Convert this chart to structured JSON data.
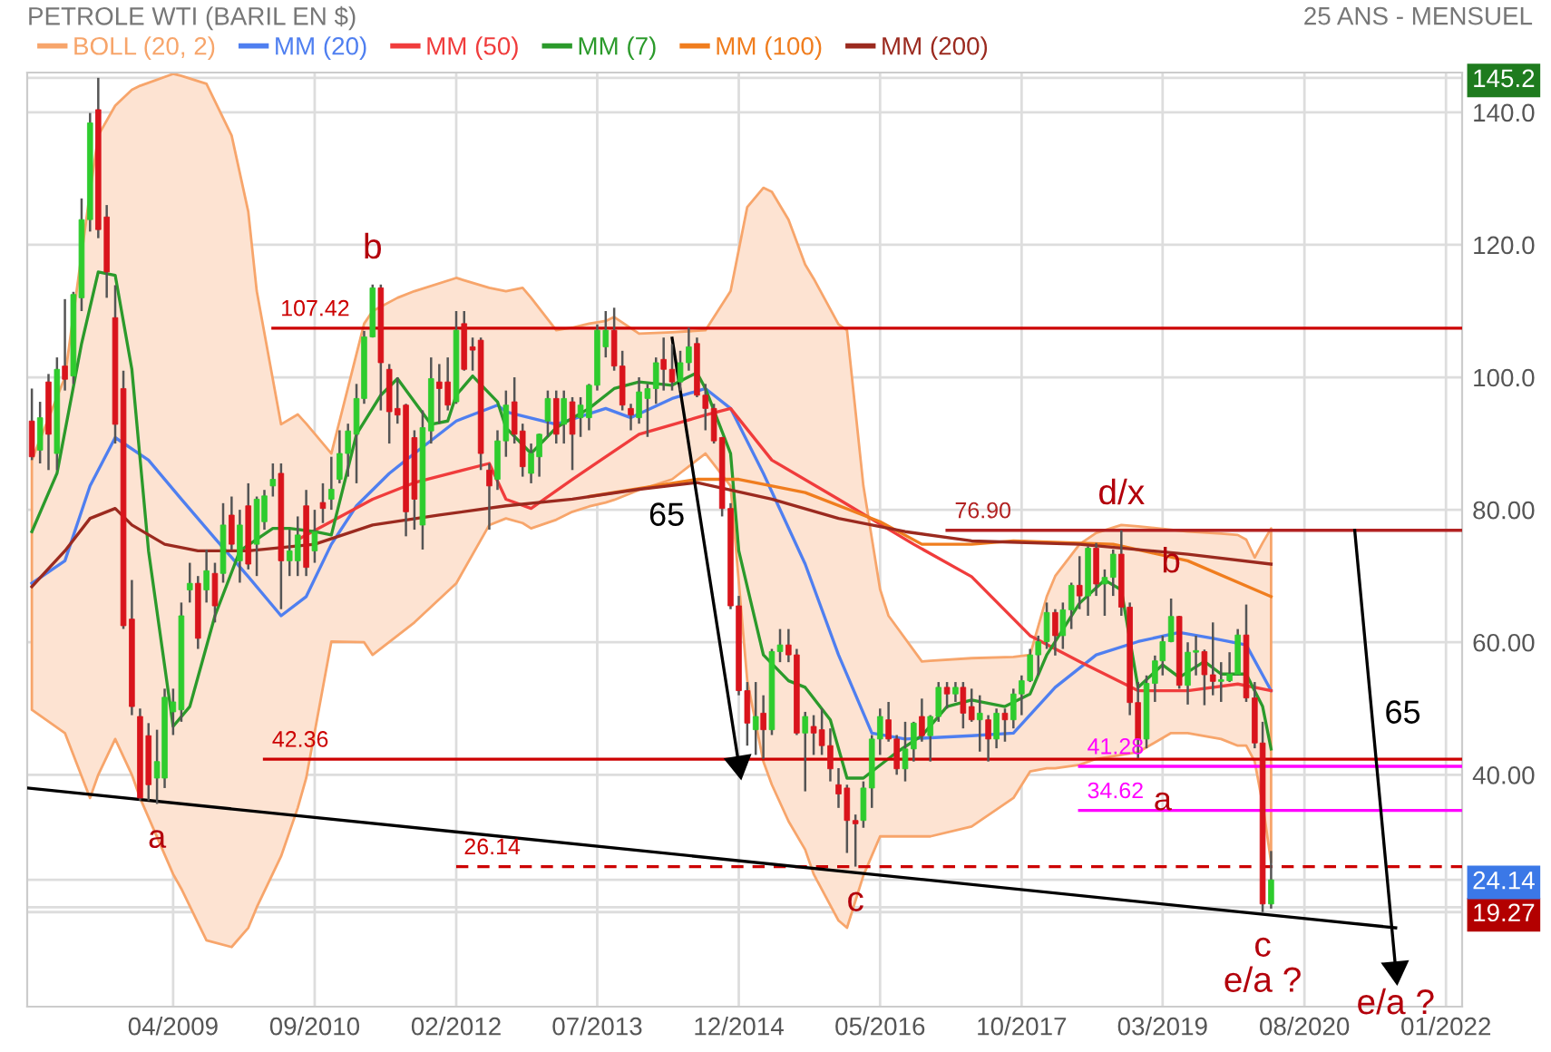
{
  "chart_data": {
    "type": "candlestick",
    "title": "PETROLE WTI (BARIL EN $)",
    "subtitle": "25 ANS - MENSUEL",
    "x": [
      "2007-11",
      "2007-12",
      "2008-01",
      "2008-02",
      "2008-03",
      "2008-04",
      "2008-05",
      "2008-06",
      "2008-07",
      "2008-08",
      "2008-09",
      "2008-10",
      "2008-11",
      "2008-12",
      "2009-01",
      "2009-02",
      "2009-03",
      "2009-04",
      "2009-05",
      "2009-06",
      "2009-07",
      "2009-08",
      "2009-09",
      "2009-10",
      "2009-11",
      "2009-12",
      "2010-01",
      "2010-02",
      "2010-03",
      "2010-04",
      "2010-05",
      "2010-06",
      "2010-07",
      "2010-08",
      "2010-09",
      "2010-10",
      "2010-11",
      "2010-12",
      "2011-01",
      "2011-02",
      "2011-03",
      "2011-04",
      "2011-05",
      "2011-06",
      "2011-07",
      "2011-08",
      "2011-09",
      "2011-10",
      "2011-11",
      "2011-12",
      "2012-01",
      "2012-02",
      "2012-03",
      "2012-04",
      "2012-05",
      "2012-06",
      "2012-07",
      "2012-08",
      "2012-09",
      "2012-10",
      "2012-11",
      "2012-12",
      "2013-01",
      "2013-02",
      "2013-03",
      "2013-04",
      "2013-05",
      "2013-06",
      "2013-07",
      "2013-08",
      "2013-09",
      "2013-10",
      "2013-11",
      "2013-12",
      "2014-01",
      "2014-02",
      "2014-03",
      "2014-04",
      "2014-05",
      "2014-06",
      "2014-07",
      "2014-08",
      "2014-09",
      "2014-10",
      "2014-11",
      "2014-12",
      "2015-01",
      "2015-02",
      "2015-03",
      "2015-04",
      "2015-05",
      "2015-06",
      "2015-07",
      "2015-08",
      "2015-09",
      "2015-10",
      "2015-11",
      "2015-12",
      "2016-01",
      "2016-02",
      "2016-03",
      "2016-04",
      "2016-05",
      "2016-06",
      "2016-07",
      "2016-08",
      "2016-09",
      "2016-10",
      "2016-11",
      "2016-12",
      "2017-01",
      "2017-02",
      "2017-03",
      "2017-04",
      "2017-05",
      "2017-06",
      "2017-07",
      "2017-08",
      "2017-09",
      "2017-10",
      "2017-11",
      "2017-12",
      "2018-01",
      "2018-02",
      "2018-03",
      "2018-04",
      "2018-05",
      "2018-06",
      "2018-07",
      "2018-08",
      "2018-09",
      "2018-10",
      "2018-11",
      "2018-12",
      "2019-01",
      "2019-02",
      "2019-03",
      "2019-04",
      "2019-05",
      "2019-06",
      "2019-07",
      "2019-08",
      "2019-09",
      "2019-10",
      "2019-11",
      "2019-12",
      "2020-01",
      "2020-02",
      "2020-03",
      "2020-04"
    ],
    "ohlc": [
      [
        93.4,
        98.3,
        87.5,
        88
      ],
      [
        89,
        96.3,
        87,
        93.9
      ],
      [
        99.3,
        100.5,
        86,
        91.4
      ],
      [
        88.5,
        103,
        86,
        101.2
      ],
      [
        101.7,
        111.8,
        98,
        99.7
      ],
      [
        100.2,
        112.9,
        99,
        112.5
      ],
      [
        112,
        127,
        110,
        123.8
      ],
      [
        123.8,
        139.9,
        122,
        138.4
      ],
      [
        140.4,
        145.2,
        121,
        122.3
      ],
      [
        124.2,
        126,
        112,
        115.9
      ],
      [
        109,
        113.9,
        90,
        92.9
      ],
      [
        98.3,
        101,
        62,
        62.5
      ],
      [
        63.5,
        69.4,
        49,
        50.3
      ],
      [
        48.8,
        50,
        36.1,
        36.5
      ],
      [
        45.9,
        47.8,
        36.1,
        38.5
      ],
      [
        39.5,
        46.8,
        35.6,
        42
      ],
      [
        39.5,
        53,
        38,
        51.7
      ],
      [
        49.5,
        53,
        46,
        51
      ],
      [
        49.8,
        66,
        48,
        64
      ],
      [
        67.9,
        72,
        66,
        68.9
      ],
      [
        68.9,
        70,
        59,
        60.6
      ],
      [
        67.9,
        74,
        66,
        70.8
      ],
      [
        70.4,
        72,
        63,
        65.5
      ],
      [
        70.4,
        81,
        69,
        77.7
      ],
      [
        79.2,
        82,
        74,
        74.8
      ],
      [
        72.3,
        80,
        69,
        77.7
      ],
      [
        80.6,
        84,
        71,
        71.8
      ],
      [
        74.8,
        82,
        70,
        81.6
      ],
      [
        78.2,
        83,
        77,
        82.1
      ],
      [
        83.6,
        87,
        82,
        84.6
      ],
      [
        85.5,
        87,
        65,
        72.3
      ],
      [
        72.3,
        77,
        70,
        73.8
      ],
      [
        72.3,
        79,
        70,
        76.2
      ],
      [
        80.6,
        83,
        70,
        71.3
      ],
      [
        73.8,
        80,
        72,
        76.7
      ],
      [
        81.1,
        84,
        78,
        80.2
      ],
      [
        81.6,
        88,
        80,
        83.1
      ],
      [
        84.6,
        92,
        84,
        88.5
      ],
      [
        88.5,
        93,
        85,
        91.9
      ],
      [
        91.4,
        99,
        84,
        96.8
      ],
      [
        96.8,
        107,
        96,
        106.1
      ],
      [
        106.1,
        114,
        106,
        113.5
      ],
      [
        113.5,
        114,
        95,
        102.2
      ],
      [
        101.2,
        102,
        90,
        94.8
      ],
      [
        95.3,
        100,
        93,
        94.3
      ],
      [
        95.8,
        96,
        76,
        79.7
      ],
      [
        90.9,
        92,
        77,
        81.6
      ],
      [
        77.7,
        95,
        74,
        92.4
      ],
      [
        91.9,
        103,
        90,
        99.8
      ],
      [
        99.3,
        102,
        93,
        98.3
      ],
      [
        99.3,
        103,
        95,
        95.8
      ],
      [
        96.3,
        110,
        96,
        107.1
      ],
      [
        108.1,
        110,
        101,
        101.2
      ],
      [
        104.6,
        106,
        101,
        104.1
      ],
      [
        105.6,
        106,
        86,
        88.5
      ],
      [
        86,
        87,
        77,
        83.6
      ],
      [
        84.6,
        92,
        83,
        90.4
      ],
      [
        90.4,
        98,
        88,
        95.8
      ],
      [
        96.3,
        100,
        90,
        91.4
      ],
      [
        91.9,
        93,
        85,
        86.5
      ],
      [
        85.5,
        90,
        84,
        88.5
      ],
      [
        88,
        91.5,
        85,
        91.4
      ],
      [
        93.4,
        98,
        91,
        96.8
      ],
      [
        96.8,
        98,
        90,
        91.4
      ],
      [
        92.9,
        98,
        90,
        96.8
      ],
      [
        96.3,
        97,
        86,
        91.4
      ],
      [
        93.9,
        97,
        91,
        95.8
      ],
      [
        93.9,
        99,
        92,
        98.8
      ],
      [
        98.8,
        108,
        98,
        107.1
      ],
      [
        104.6,
        110,
        103,
        107.1
      ],
      [
        107.1,
        110.5,
        101,
        101.7
      ],
      [
        101.7,
        104,
        95,
        95.8
      ],
      [
        95.3,
        96,
        92,
        94.3
      ],
      [
        93.9,
        100,
        93,
        97.8
      ],
      [
        96.8,
        99,
        91,
        98.3
      ],
      [
        98.3,
        103,
        96,
        102.2
      ],
      [
        102.7,
        106,
        98,
        101.2
      ],
      [
        101.2,
        105,
        98,
        99.3
      ],
      [
        99.3,
        104,
        98,
        102.2
      ],
      [
        102.2,
        107.5,
        101,
        104.6
      ],
      [
        105.1,
        106,
        97,
        97.3
      ],
      [
        97.3,
        99,
        92,
        95.3
      ],
      [
        95.3,
        96,
        90,
        90.4
      ],
      [
        90.9,
        91,
        79,
        80.2
      ],
      [
        80.2,
        81,
        65,
        65.5
      ],
      [
        65.5,
        67,
        52,
        52.7
      ],
      [
        52.7,
        54,
        44.4,
        47.8
      ],
      [
        46.8,
        54,
        43,
        48.8
      ],
      [
        49.3,
        52,
        42.4,
        46.8
      ],
      [
        46.8,
        59,
        46,
        58.6
      ],
      [
        58.6,
        62,
        57,
        59.6
      ],
      [
        59.6,
        62,
        57,
        58.1
      ],
      [
        58.1,
        59,
        46,
        46.3
      ],
      [
        46.3,
        49.5,
        37.5,
        48.8
      ],
      [
        47.3,
        49,
        43,
        46.3
      ],
      [
        46.8,
        50,
        43,
        44.4
      ],
      [
        44.4,
        47,
        39,
        40.9
      ],
      [
        38.5,
        41,
        35,
        37.1
      ],
      [
        38,
        38.5,
        28.2,
        33.1
      ],
      [
        33.1,
        34,
        26.14,
        32.6
      ],
      [
        33.1,
        39,
        32,
        38
      ],
      [
        38,
        46,
        35,
        45.4
      ],
      [
        45.4,
        50,
        43,
        48.8
      ],
      [
        48.3,
        51,
        45,
        45.4
      ],
      [
        45.4,
        46,
        40,
        40.9
      ],
      [
        40.9,
        48,
        39,
        43.9
      ],
      [
        43.9,
        48,
        42,
        47.8
      ],
      [
        48.8,
        51.5,
        45,
        45.9
      ],
      [
        45.9,
        49,
        42,
        48.8
      ],
      [
        48.8,
        54,
        48,
        53.2
      ],
      [
        53.2,
        54,
        50,
        52.2
      ],
      [
        52.2,
        54,
        51,
        53.2
      ],
      [
        53.2,
        54,
        47,
        49.3
      ],
      [
        50.3,
        53,
        48,
        48.3
      ],
      [
        48.3,
        52,
        43.5,
        49.3
      ],
      [
        48.3,
        49,
        42,
        45.4
      ],
      [
        45.4,
        50,
        44,
        49.3
      ],
      [
        49.3,
        50,
        45,
        48.3
      ],
      [
        48.3,
        53,
        47,
        52.2
      ],
      [
        52.2,
        55,
        49,
        54.2
      ],
      [
        54.2,
        59,
        54,
        58.1
      ],
      [
        58.1,
        61,
        55,
        60.1
      ],
      [
        60.1,
        66,
        59,
        64.5
      ],
      [
        64.5,
        65,
        58,
        61
      ],
      [
        61,
        66,
        59,
        64.9
      ],
      [
        64.9,
        69,
        62,
        68.6
      ],
      [
        68.6,
        73,
        65,
        67
      ],
      [
        67,
        74.5,
        64,
        74.2
      ],
      [
        74.2,
        75,
        67,
        68.8
      ],
      [
        68.8,
        71,
        64,
        69.8
      ],
      [
        69.8,
        74,
        67,
        73.3
      ],
      [
        73.3,
        76.9,
        64,
        65.3
      ],
      [
        65.3,
        66,
        49,
        50.9
      ],
      [
        50.9,
        54,
        42.5,
        45.4
      ],
      [
        45.4,
        55,
        44,
        53.8
      ],
      [
        53.8,
        58,
        51,
        57.2
      ],
      [
        57.2,
        61,
        55,
        60.1
      ],
      [
        60.1,
        66.6,
        60,
        63.9
      ],
      [
        63.9,
        64,
        53,
        53.5
      ],
      [
        53.5,
        60,
        50.6,
        58.5
      ],
      [
        58.5,
        61,
        55,
        58.6
      ],
      [
        58.6,
        58.9,
        50.5,
        55.1
      ],
      [
        55.1,
        63,
        52,
        54.1
      ],
      [
        54.1,
        57,
        51,
        54.2
      ],
      [
        54.2,
        58.5,
        54,
        55.2
      ],
      [
        55.2,
        62,
        55,
        61.1
      ],
      [
        61.1,
        65.7,
        51,
        51.6
      ],
      [
        51.6,
        54,
        44,
        44.8
      ],
      [
        44.8,
        48,
        19.27,
        20.5
      ],
      [
        20.5,
        28.5,
        19.8,
        24.14
      ]
    ],
    "series": [
      {
        "name": "BOLL (20, 2)",
        "type": "area",
        "color": "#f7a56b",
        "values": [
          null,
          null,
          null,
          null,
          null,
          null,
          null,
          null,
          null,
          null,
          null,
          null,
          null,
          null,
          null,
          null,
          null,
          null,
          null,
          null,
          null,
          null,
          null,
          null,
          null,
          null,
          null,
          null,
          null,
          null,
          null,
          null,
          null,
          null,
          null,
          null,
          null,
          null,
          null,
          null,
          null,
          null,
          null,
          null,
          null,
          null,
          null,
          null,
          null,
          null,
          null,
          null,
          null,
          null,
          null,
          null,
          null,
          null,
          null,
          null,
          null,
          null,
          null,
          null,
          null
        ],
        "x": [
          "2007-11",
          "2008-03",
          "2008-06",
          "2008-07",
          "2008-09",
          "2008-11",
          "2008-12",
          "2009-04",
          "2009-05",
          "2009-08",
          "2009-11",
          "2010-01",
          "2010-02",
          "2010-05",
          "2010-07",
          "2010-08",
          "2010-11",
          "2011-03",
          "2011-04",
          "2011-07",
          "2011-09",
          "2012-02",
          "2012-06",
          "2012-08",
          "2012-10",
          "2012-11",
          "2013-02",
          "2013-04",
          "2013-06",
          "2013-08",
          "2013-09",
          "2013-12",
          "2014-04",
          "2014-08",
          "2014-11",
          "2015-01",
          "2015-03",
          "2015-04",
          "2015-06",
          "2015-08",
          "2015-09",
          "2015-12",
          "2016-01",
          "2016-03",
          "2016-05",
          "2016-06",
          "2016-10",
          "2016-11",
          "2017-04",
          "2017-09",
          "2017-11",
          "2018-01",
          "2018-02",
          "2018-05",
          "2018-07",
          "2018-10",
          "2018-12",
          "2019-04",
          "2019-06",
          "2019-10",
          "2019-12",
          "2020-01",
          "2020-02",
          "2020-03",
          "2020-04"
        ],
        "upper": [
          87.5,
          100,
          128,
          136.5,
          141,
          143.4,
          144,
          145.8,
          145.5,
          144.3,
          136.5,
          125,
          113,
          92.9,
          94.4,
          93,
          88.5,
          108.1,
          110,
          112,
          113,
          115,
          113.5,
          113,
          113.5,
          112,
          107.1,
          107.5,
          108.1,
          108.5,
          109.1,
          106.6,
          106.8,
          107.1,
          113,
          125.7,
          128.6,
          128,
          123.8,
          117,
          114.9,
          108,
          107.1,
          83.6,
          68,
          64,
          57.1,
          57.2,
          57.6,
          57.8,
          58.1,
          66.9,
          70,
          74.8,
          76.5,
          77.7,
          77.5,
          77,
          76.7,
          76.4,
          76.2,
          75.5,
          72.8,
          75,
          77.2
        ],
        "lower": [
          49.8,
          46.3,
          36.5,
          40,
          45.4,
          40,
          36.5,
          25,
          22.8,
          15,
          14,
          16.9,
          20,
          27.7,
          35,
          39.5,
          60.1,
          60,
          58.1,
          61,
          63,
          68.9,
          77.7,
          78.7,
          78,
          77.2,
          78.5,
          79.7,
          80.5,
          81.1,
          81.5,
          83,
          84.6,
          88.5,
          83.6,
          54.2,
          42,
          38.5,
          33,
          28.7,
          25,
          18,
          16.9,
          24.8,
          30.7,
          30.7,
          30.7,
          30.7,
          32.2,
          36.5,
          40.5,
          41,
          41,
          41.5,
          42.4,
          43,
          43.4,
          46.3,
          46.3,
          45.4,
          44.4,
          44.4,
          42,
          35.6,
          26.8
        ]
      },
      {
        "name": "MM (20)",
        "type": "line",
        "color": "#4f7ff0",
        "x": [
          "2007-11",
          "2008-03",
          "2008-06",
          "2008-09",
          "2009-01",
          "2009-05",
          "2009-09",
          "2010-01",
          "2010-05",
          "2010-08",
          "2010-11",
          "2011-02",
          "2011-06",
          "2011-09",
          "2012-02",
          "2012-07",
          "2012-08",
          "2013-02",
          "2013-08",
          "2013-11",
          "2014-04",
          "2014-08",
          "2014-11",
          "2015-03",
          "2015-08",
          "2015-12",
          "2016-04",
          "2016-08",
          "2017-04",
          "2017-09",
          "2018-02",
          "2018-07",
          "2018-12",
          "2019-05",
          "2019-09",
          "2020-01",
          "2020-04"
        ],
        "values": [
          68.9,
          72.3,
          83.6,
          90.9,
          87.5,
          81.6,
          75.7,
          69.9,
          64,
          66.9,
          74.8,
          80.6,
          85.5,
          88.5,
          93.4,
          95.8,
          94.8,
          92.9,
          95.3,
          93.9,
          96.8,
          98.3,
          95.3,
          85.5,
          71.8,
          58.1,
          46.3,
          45.4,
          45.9,
          46.3,
          53.2,
          58.1,
          60.1,
          61.5,
          60.6,
          59.6,
          52.7
        ]
      },
      {
        "name": "MM (50)",
        "type": "line",
        "color": "#f03c3c",
        "x": [
          "2010-07",
          "2011-04",
          "2011-09",
          "2012-06",
          "2012-08",
          "2012-11",
          "2013-04",
          "2013-12",
          "2014-08",
          "2014-11",
          "2015-04",
          "2015-12",
          "2016-09",
          "2017-04",
          "2017-11",
          "2018-05",
          "2018-12",
          "2019-06",
          "2019-12",
          "2020-04"
        ],
        "values": [
          75.5,
          81.6,
          84.1,
          87,
          81.6,
          80.2,
          84.6,
          91.4,
          94.3,
          95.3,
          87.5,
          81.6,
          74.8,
          69.9,
          61,
          57.1,
          52.7,
          52.7,
          53.7,
          52.7
        ]
      },
      {
        "name": "MM (7)",
        "type": "line",
        "color": "#2b9a2b",
        "x": [
          "2007-11",
          "2008-02",
          "2008-05",
          "2008-07",
          "2008-09",
          "2008-11",
          "2009-01",
          "2009-04",
          "2009-06",
          "2009-09",
          "2009-12",
          "2010-04",
          "2010-06",
          "2010-09",
          "2010-11",
          "2011-02",
          "2011-05",
          "2011-07",
          "2011-09",
          "2011-11",
          "2012-01",
          "2012-02",
          "2012-04",
          "2012-07",
          "2012-08",
          "2012-11",
          "2013-02",
          "2013-06",
          "2013-09",
          "2013-12",
          "2014-04",
          "2014-07",
          "2014-08",
          "2014-11",
          "2014-12",
          "2015-03",
          "2015-06",
          "2015-08",
          "2015-11",
          "2016-01",
          "2016-03",
          "2016-07",
          "2016-10",
          "2017-01",
          "2017-04",
          "2017-08",
          "2017-11",
          "2018-01",
          "2018-05",
          "2018-08",
          "2018-10",
          "2018-12",
          "2019-03",
          "2019-05",
          "2019-08",
          "2019-10",
          "2020-01",
          "2020-03",
          "2020-04"
        ],
        "values": [
          76.7,
          85.5,
          105.1,
          115.9,
          115.4,
          101.2,
          73.8,
          47.3,
          50.3,
          64,
          73.8,
          77.2,
          77.2,
          76.7,
          76.2,
          91.4,
          97.3,
          99.8,
          96.3,
          92.9,
          93.4,
          97.3,
          100.2,
          96.3,
          92.4,
          88.5,
          92.4,
          95.3,
          98.3,
          99.3,
          98.8,
          100.7,
          98.3,
          88.5,
          73.8,
          58.1,
          54.2,
          53.2,
          48.3,
          39.5,
          39.5,
          43.4,
          45.9,
          50.3,
          51.3,
          50.3,
          52.2,
          58.1,
          65.9,
          69.4,
          67.9,
          53.2,
          56.6,
          54.7,
          57.1,
          55.2,
          55.2,
          50.3,
          43.9
        ]
      },
      {
        "name": "MM (100)",
        "type": "line",
        "color": "#f07d1e",
        "x": [
          "2013-06",
          "2014-07",
          "2014-12",
          "2015-08",
          "2016-05",
          "2016-10",
          "2017-04",
          "2017-09",
          "2018-09",
          "2019-06",
          "2020-04"
        ],
        "values": [
          82,
          84.6,
          84.6,
          82.6,
          78.2,
          74.8,
          74.8,
          75.3,
          74.8,
          72.3,
          66.9
        ]
      },
      {
        "name": "MM (200)",
        "type": "line",
        "color": "#9b2a1f",
        "x": [
          "2007-11",
          "2008-03",
          "2008-06",
          "2008-09",
          "2008-11",
          "2009-03",
          "2009-07",
          "2010-01",
          "2010-09",
          "2011-04",
          "2011-12",
          "2012-08",
          "2013-04",
          "2013-12",
          "2014-07",
          "2015-04",
          "2015-12",
          "2016-08",
          "2017-04",
          "2018-05",
          "2019-06",
          "2020-04"
        ],
        "values": [
          68.4,
          73.8,
          78.7,
          80.2,
          77.7,
          74.8,
          73.8,
          73.8,
          74.8,
          77.7,
          79.2,
          80.6,
          81.6,
          83.1,
          84.1,
          81.6,
          78.7,
          76.7,
          75.3,
          74.8,
          73.3,
          71.8
        ]
      },
      {
        "name": "107.42",
        "type": "line",
        "color": "#cc0000",
        "x": [
          "2010-04",
          "2022-03-01"
        ],
        "values": [
          107.42,
          107.42
        ]
      },
      {
        "name": "76.90",
        "type": "line",
        "color": "#b22222",
        "x": [
          "2017-01",
          "2022-03-01"
        ],
        "values": [
          76.9,
          76.9
        ]
      },
      {
        "name": "42.36",
        "type": "line",
        "color": "#cc0000",
        "x": [
          "2010-03",
          "2022-03-01"
        ],
        "values": [
          42.36,
          42.36
        ]
      },
      {
        "name": "41.28",
        "type": "line",
        "color": "#ff00ff",
        "x": [
          "2018-05",
          "2022-03-01"
        ],
        "values": [
          41.28,
          41.28
        ]
      },
      {
        "name": "34.62",
        "type": "line",
        "color": "#ff00ff",
        "x": [
          "2018-05",
          "2022-03-01"
        ],
        "values": [
          34.62,
          34.62
        ]
      },
      {
        "name": "26.14",
        "type": "line",
        "color": "#cc0000",
        "line_style": "dashed",
        "x": [
          "2012-02",
          "2022-03-01"
        ],
        "values": [
          26.14,
          26.14
        ]
      },
      {
        "type": "line",
        "color": "#000000",
        "x": [
          "2007-10-15",
          "2021-07"
        ],
        "values": [
          38,
          16.9
        ]
      },
      {
        "name": "65",
        "type": "line",
        "color": "#000000",
        "marker": "triangle",
        "x": [
          "2014-04",
          "2014-12"
        ],
        "values": [
          105.9,
          41.6
        ]
      },
      {
        "name": "65",
        "type": "line",
        "color": "#000000",
        "marker": "triangle",
        "x": [
          "2021-02",
          "2021-07"
        ],
        "values": [
          76.9,
          10.6
        ]
      }
    ],
    "annotations": [
      {
        "text": "a",
        "x": "2009-02",
        "y": 35.6
      },
      {
        "text": "b",
        "x": "2011-04",
        "y": 114
      },
      {
        "text": "c",
        "x": "2016-02",
        "y": 26.14
      },
      {
        "text": "d/x",
        "x": "2018-10",
        "y": 76.9
      },
      {
        "text": "b",
        "x": "2019-04",
        "y": 66.6
      },
      {
        "text": "a",
        "x": "2019-03",
        "y": 41.28
      },
      {
        "text": "c",
        "x": "2020-03",
        "y": 19.27
      },
      {
        "text": "e/a ?",
        "x": "2020-03",
        "y": 19.27
      },
      {
        "text": "e/a ?",
        "x": "2021-07",
        "y": 10.6
      }
    ],
    "xlim": [
      "2007-10-15",
      "2022-03-01"
    ],
    "ylim": [
      5,
      146
    ],
    "xticks": [
      {
        "value": "2009-04",
        "label": "04/2009"
      },
      {
        "value": "2010-09",
        "label": "09/2010"
      },
      {
        "value": "2012-02",
        "label": "02/2012"
      },
      {
        "value": "2013-07",
        "label": "07/2013"
      },
      {
        "value": "2014-12",
        "label": "12/2014"
      },
      {
        "value": "2016-05",
        "label": "05/2016"
      },
      {
        "value": "2017-10",
        "label": "10/2017"
      },
      {
        "value": "2019-03",
        "label": "03/2019"
      },
      {
        "value": "2020-08",
        "label": "08/2020"
      },
      {
        "value": "2022-01",
        "label": "01/2022"
      }
    ],
    "yticks": [
      {
        "value": 19.27,
        "label": "19.27"
      },
      {
        "value": 20,
        "label": null
      },
      {
        "value": 24.14,
        "label": "24.14"
      },
      {
        "value": 145.2,
        "label": "145.2"
      },
      {
        "value": 40,
        "label": "40.00"
      },
      {
        "value": 60,
        "label": "60.00"
      },
      {
        "value": 80,
        "label": "80.00"
      },
      {
        "value": 100,
        "label": "100.0"
      },
      {
        "value": 120,
        "label": "120.0"
      },
      {
        "value": 140,
        "label": "140.0"
      }
    ],
    "grid": true,
    "legend": "top left"
  }
}
